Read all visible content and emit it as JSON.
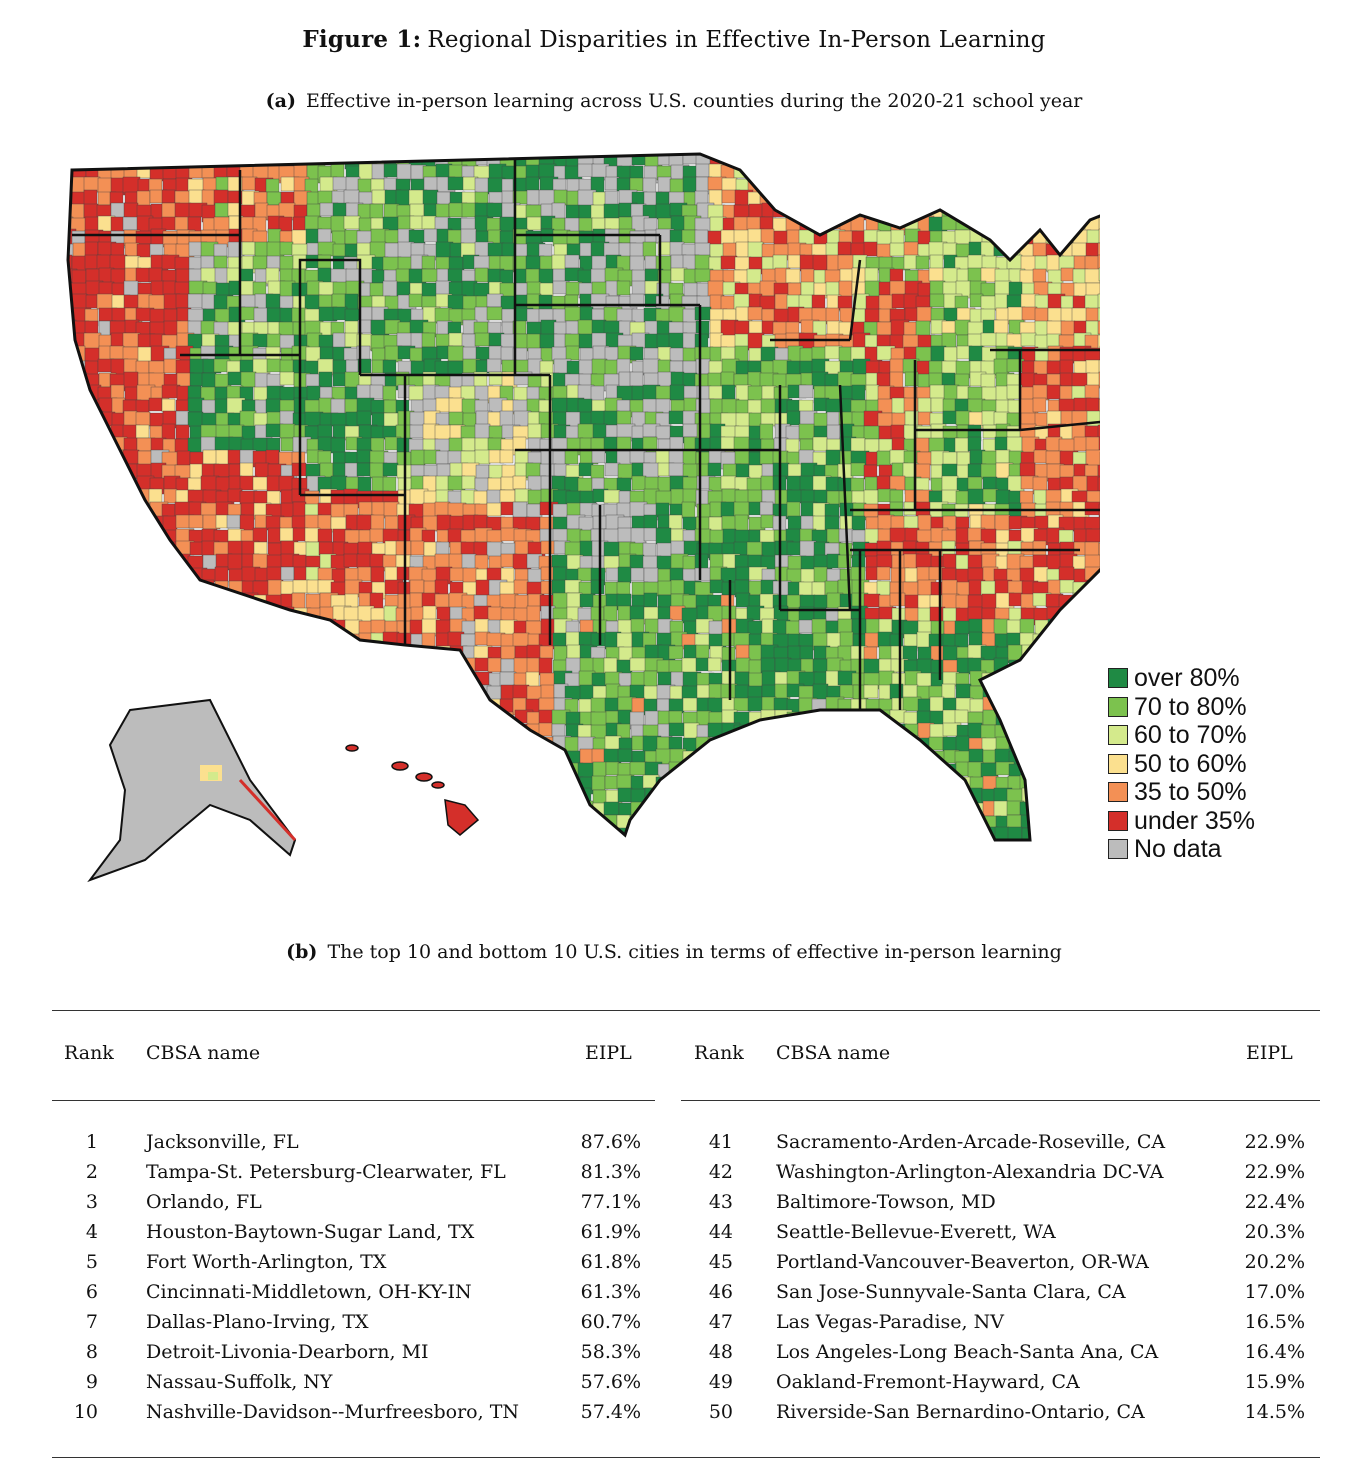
{
  "figure": {
    "label": "Figure 1:",
    "title": "Regional Disparities in Effective In-Person Learning"
  },
  "panel_a": {
    "label": "(a)",
    "caption": "Effective in-person learning across U.S. counties during the 2020-21 school year"
  },
  "legend": [
    {
      "label": "over 80%",
      "color": "#1f8a44"
    },
    {
      "label": "70 to 80%",
      "color": "#7cc24e"
    },
    {
      "label": "60 to 70%",
      "color": "#d4ea8c"
    },
    {
      "label": "50 to 60%",
      "color": "#fbe08f"
    },
    {
      "label": "35 to 50%",
      "color": "#f39055"
    },
    {
      "label": "under 35%",
      "color": "#d42f2a"
    },
    {
      "label": "No data",
      "color": "#bcbcbc"
    }
  ],
  "panel_b": {
    "label": "(b)",
    "caption": "The top 10 and bottom 10 U.S. cities in terms of effective in-person learning"
  },
  "table": {
    "headers": {
      "rank": "Rank",
      "name": "CBSA name",
      "value": "EIPL"
    },
    "top": [
      {
        "rank": "1",
        "name": "Jacksonville, FL",
        "eipl": "87.6%"
      },
      {
        "rank": "2",
        "name": "Tampa-St. Petersburg-Clearwater, FL",
        "eipl": "81.3%"
      },
      {
        "rank": "3",
        "name": "Orlando, FL",
        "eipl": "77.1%"
      },
      {
        "rank": "4",
        "name": "Houston-Baytown-Sugar Land, TX",
        "eipl": "61.9%"
      },
      {
        "rank": "5",
        "name": "Fort Worth-Arlington, TX",
        "eipl": "61.8%"
      },
      {
        "rank": "6",
        "name": "Cincinnati-Middletown, OH-KY-IN",
        "eipl": "61.3%"
      },
      {
        "rank": "7",
        "name": "Dallas-Plano-Irving, TX",
        "eipl": "60.7%"
      },
      {
        "rank": "8",
        "name": "Detroit-Livonia-Dearborn, MI",
        "eipl": "58.3%"
      },
      {
        "rank": "9",
        "name": "Nassau-Suffolk, NY",
        "eipl": "57.6%"
      },
      {
        "rank": "10",
        "name": "Nashville-Davidson--Murfreesboro, TN",
        "eipl": "57.4%"
      }
    ],
    "bottom": [
      {
        "rank": "41",
        "name": "Sacramento-Arden-Arcade-Roseville, CA",
        "eipl": "22.9%"
      },
      {
        "rank": "42",
        "name": "Washington-Arlington-Alexandria DC-VA",
        "eipl": "22.9%"
      },
      {
        "rank": "43",
        "name": "Baltimore-Towson, MD",
        "eipl": "22.4%"
      },
      {
        "rank": "44",
        "name": "Seattle-Bellevue-Everett, WA",
        "eipl": "20.3%"
      },
      {
        "rank": "45",
        "name": "Portland-Vancouver-Beaverton, OR-WA",
        "eipl": "20.2%"
      },
      {
        "rank": "46",
        "name": "San Jose-Sunnyvale-Santa Clara, CA",
        "eipl": "17.0%"
      },
      {
        "rank": "47",
        "name": "Las Vegas-Paradise, NV",
        "eipl": "16.5%"
      },
      {
        "rank": "48",
        "name": "Los Angeles-Long Beach-Santa Ana, CA",
        "eipl": "16.4%"
      },
      {
        "rank": "49",
        "name": "Oakland-Fremont-Hayward, CA",
        "eipl": "15.9%"
      },
      {
        "rank": "50",
        "name": "Riverside-San Bernardino-Ontario, CA",
        "eipl": "14.5%"
      }
    ]
  }
}
